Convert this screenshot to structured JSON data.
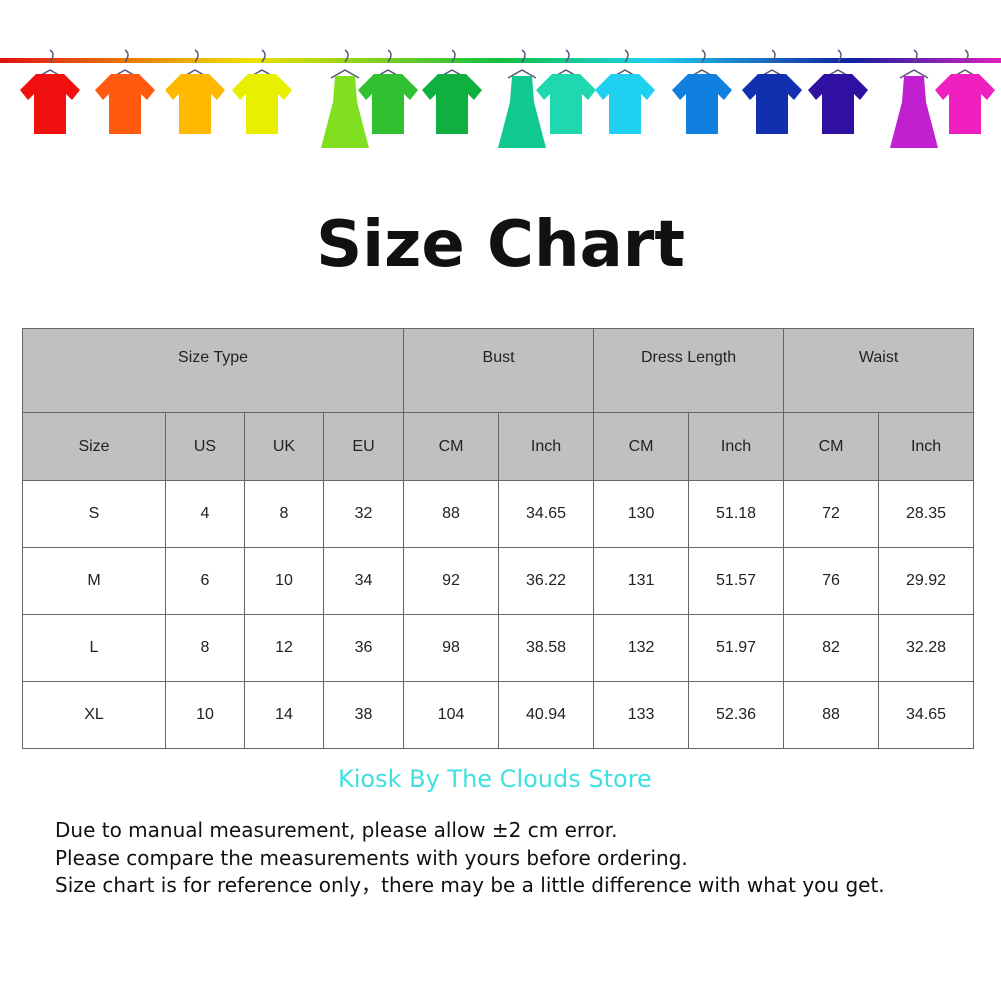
{
  "title": "Size Chart",
  "watermark": "Kiosk By The Clouds Store",
  "banner": {
    "colors": [
      "#f01010",
      "#ff5a10",
      "#ffb800",
      "#e8f000",
      "#80e020",
      "#30c030",
      "#10b040",
      "#10c890",
      "#20d8b0",
      "#20d0f0",
      "#1080e0",
      "#1030b0",
      "#3010a0",
      "#c020d0",
      "#f020c0"
    ]
  },
  "table": {
    "group_headers": [
      {
        "label": "Size Type",
        "span": 4
      },
      {
        "label": "Bust",
        "span": 2
      },
      {
        "label": "Dress Length",
        "span": 2
      },
      {
        "label": "Waist",
        "span": 2
      }
    ],
    "sub_headers": [
      "Size",
      "US",
      "UK",
      "EU",
      "CM",
      "Inch",
      "CM",
      "Inch",
      "CM",
      "Inch"
    ],
    "rows": [
      [
        "S",
        "4",
        "8",
        "32",
        "88",
        "34.65",
        "130",
        "51.18",
        "72",
        "28.35"
      ],
      [
        "M",
        "6",
        "10",
        "34",
        "92",
        "36.22",
        "131",
        "51.57",
        "76",
        "29.92"
      ],
      [
        "L",
        "8",
        "12",
        "36",
        "98",
        "38.58",
        "132",
        "51.97",
        "82",
        "32.28"
      ],
      [
        "XL",
        "10",
        "14",
        "38",
        "104",
        "40.94",
        "133",
        "52.36",
        "88",
        "34.65"
      ]
    ]
  },
  "notes": [
    "Due to manual measurement, please allow ±2 cm error.",
    "Please compare the measurements with yours before ordering.",
    "Size chart is for reference only，there may be a little difference with what you get."
  ]
}
